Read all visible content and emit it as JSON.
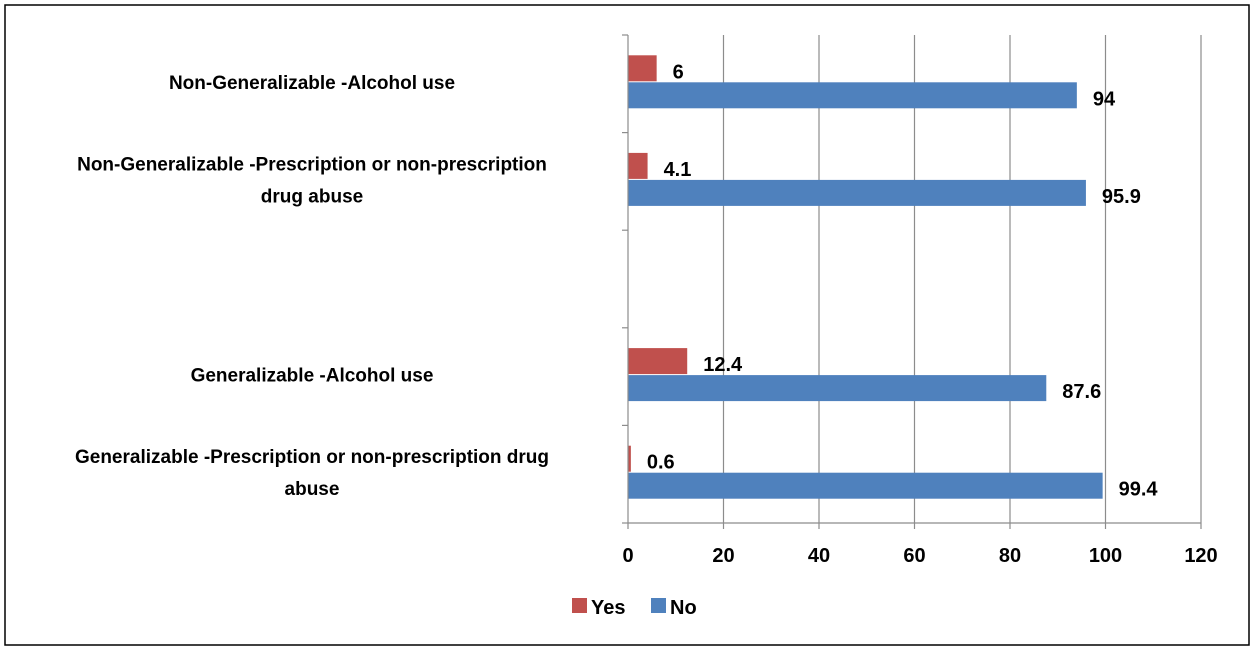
{
  "chart_data": {
    "type": "bar",
    "orientation": "horizontal",
    "categories": [
      [
        "Non-Generalizable  -Alcohol use"
      ],
      [
        "Non-Generalizable -Prescription or non-prescription",
        "drug abuse"
      ],
      [],
      [
        "Generalizable  -Alcohol use"
      ],
      [
        "Generalizable -Prescription or non-prescription drug",
        "abuse"
      ]
    ],
    "series": [
      {
        "name": "Yes",
        "color": "#c0504d",
        "values": [
          6,
          4.1,
          null,
          12.4,
          0.6
        ],
        "labels": [
          "6",
          "4.1",
          "",
          "12.4",
          "0.6"
        ]
      },
      {
        "name": "No",
        "color": "#4f81bd",
        "values": [
          94,
          95.9,
          null,
          87.6,
          99.4
        ],
        "labels": [
          "94",
          "95.9",
          "",
          "87.6",
          "99.4"
        ]
      }
    ],
    "xlim": [
      0,
      120
    ],
    "xticks": [
      "0",
      "20",
      "40",
      "60",
      "80",
      "100",
      "120"
    ],
    "grid": "vertical",
    "legend": "bottom",
    "title": "",
    "xlabel": "",
    "ylabel": ""
  }
}
